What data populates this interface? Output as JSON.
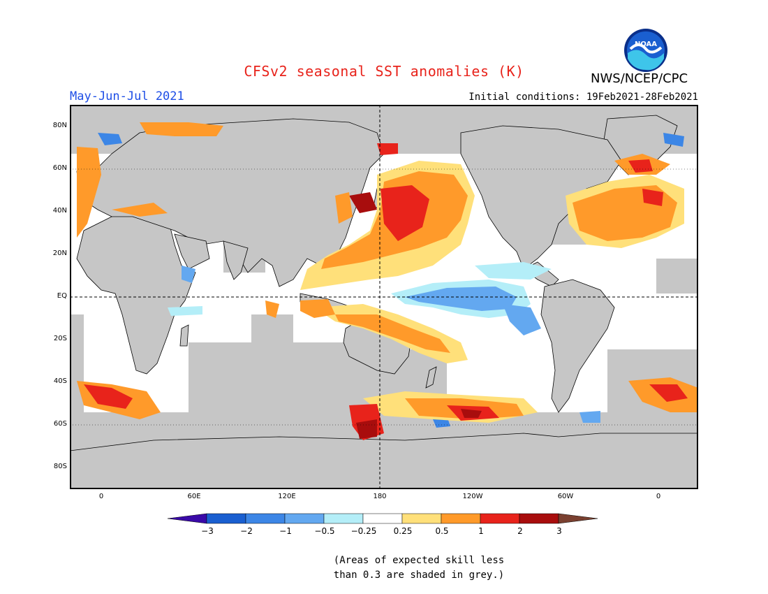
{
  "header": {
    "title": "CFSv2 seasonal SST anomalies (K)",
    "agency": "NWS/NCEP/CPC",
    "season": "May-Jun-Jul 2021",
    "initial_conditions": "Initial conditions: 19Feb2021-28Feb2021",
    "logo_text": "NOAA"
  },
  "map": {
    "projection": "cylindrical equidistant",
    "lat_labels": [
      "80N",
      "60N",
      "40N",
      "20N",
      "EQ",
      "20S",
      "40S",
      "60S",
      "80S"
    ],
    "lon_labels": [
      "0",
      "60E",
      "120E",
      "180",
      "120W",
      "60W",
      "0"
    ],
    "reference_lines": "dashed equator and 180 meridian; dotted 60N/60S",
    "land_color": "#c6c6c6",
    "low_skill_color": "#c6c6c6",
    "ocean_neutral_color": "#ffffff"
  },
  "colorbar": {
    "ticks": [
      "−3",
      "−2",
      "−1",
      "−0.5",
      "−0.25",
      "0.25",
      "0.5",
      "1",
      "2",
      "3"
    ],
    "colors": [
      "#3a0aa8",
      "#1a5fd0",
      "#3c86e6",
      "#63a8f0",
      "#b4eef8",
      "#ffffff",
      "#ffe07a",
      "#ff9a2a",
      "#e8231b",
      "#a80d0d",
      "#7a4030"
    ]
  },
  "note": "(Areas of expected skill less\nthan 0.3 are shaded in grey.)"
}
